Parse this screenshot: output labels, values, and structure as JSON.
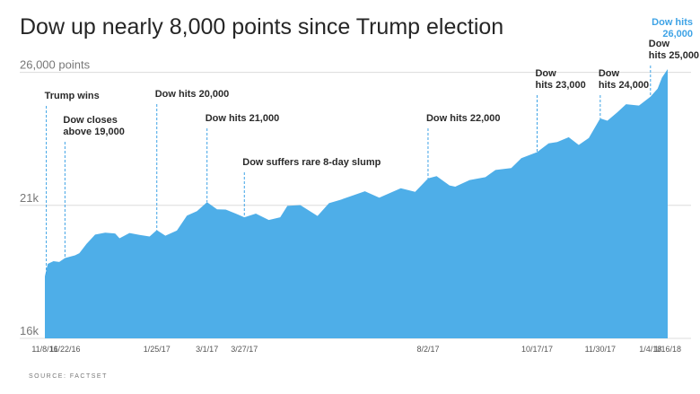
{
  "title": "Dow up nearly 8,000 points since Trump election",
  "source": "SOURCE: FACTSET",
  "colors": {
    "area": "#4eaee8",
    "highlight": "#3ea3e6",
    "grid": "#dcdcdc"
  },
  "chart_data": {
    "type": "area",
    "title": "Dow up nearly 8,000 points since Trump election",
    "ylim": [
      16000,
      27200
    ],
    "y_ticks": [
      {
        "value": 26000,
        "label": "26,000 points"
      },
      {
        "value": 21000,
        "label": "21k"
      },
      {
        "value": 16000,
        "label": "16k"
      }
    ],
    "x_ticks": [
      {
        "date": "2016-11-08",
        "label": "11/8/16"
      },
      {
        "date": "2016-11-22",
        "label": "11/22/16"
      },
      {
        "date": "2017-01-25",
        "label": "1/25/17"
      },
      {
        "date": "2017-03-01",
        "label": "3/1/17"
      },
      {
        "date": "2017-03-27",
        "label": "3/27/17"
      },
      {
        "date": "2017-08-02",
        "label": "8/2/17"
      },
      {
        "date": "2017-10-17",
        "label": "10/17/17"
      },
      {
        "date": "2017-11-30",
        "label": "11/30/17"
      },
      {
        "date": "2018-01-04",
        "label": "1/4/18"
      },
      {
        "date": "2018-01-16",
        "label": "1/16/18"
      }
    ],
    "series": [
      {
        "points": [
          [
            "2016-11-08",
            18330
          ],
          [
            "2016-11-10",
            18800
          ],
          [
            "2016-11-14",
            18900
          ],
          [
            "2016-11-18",
            18870
          ],
          [
            "2016-11-22",
            19020
          ],
          [
            "2016-11-29",
            19120
          ],
          [
            "2016-12-02",
            19200
          ],
          [
            "2016-12-07",
            19550
          ],
          [
            "2016-12-13",
            19900
          ],
          [
            "2016-12-20",
            19970
          ],
          [
            "2016-12-27",
            19940
          ],
          [
            "2016-12-30",
            19760
          ],
          [
            "2017-01-06",
            19960
          ],
          [
            "2017-01-13",
            19890
          ],
          [
            "2017-01-20",
            19830
          ],
          [
            "2017-01-25",
            20070
          ],
          [
            "2017-01-31",
            19860
          ],
          [
            "2017-02-08",
            20050
          ],
          [
            "2017-02-15",
            20610
          ],
          [
            "2017-02-22",
            20780
          ],
          [
            "2017-03-01",
            21120
          ],
          [
            "2017-03-08",
            20850
          ],
          [
            "2017-03-14",
            20840
          ],
          [
            "2017-03-21",
            20690
          ],
          [
            "2017-03-27",
            20550
          ],
          [
            "2017-04-04",
            20690
          ],
          [
            "2017-04-13",
            20450
          ],
          [
            "2017-04-21",
            20550
          ],
          [
            "2017-04-26",
            20980
          ],
          [
            "2017-05-05",
            21010
          ],
          [
            "2017-05-17",
            20600
          ],
          [
            "2017-05-25",
            21080
          ],
          [
            "2017-06-02",
            21210
          ],
          [
            "2017-06-19",
            21530
          ],
          [
            "2017-06-29",
            21290
          ],
          [
            "2017-07-14",
            21640
          ],
          [
            "2017-07-24",
            21510
          ],
          [
            "2017-08-02",
            22010
          ],
          [
            "2017-08-08",
            22100
          ],
          [
            "2017-08-17",
            21750
          ],
          [
            "2017-08-21",
            21700
          ],
          [
            "2017-08-31",
            21950
          ],
          [
            "2017-09-11",
            22060
          ],
          [
            "2017-09-18",
            22330
          ],
          [
            "2017-09-29",
            22400
          ],
          [
            "2017-10-06",
            22770
          ],
          [
            "2017-10-17",
            23000
          ],
          [
            "2017-10-25",
            23330
          ],
          [
            "2017-10-31",
            23380
          ],
          [
            "2017-11-08",
            23560
          ],
          [
            "2017-11-15",
            23270
          ],
          [
            "2017-11-22",
            23530
          ],
          [
            "2017-11-30",
            24270
          ],
          [
            "2017-12-05",
            24180
          ],
          [
            "2017-12-12",
            24500
          ],
          [
            "2017-12-18",
            24800
          ],
          [
            "2017-12-27",
            24750
          ],
          [
            "2018-01-04",
            25080
          ],
          [
            "2018-01-09",
            25390
          ],
          [
            "2018-01-12",
            25800
          ],
          [
            "2018-01-16",
            26120
          ]
        ]
      }
    ],
    "annotations": [
      {
        "date": "2016-11-09",
        "value": 18400,
        "lines": [
          "Trump wins"
        ]
      },
      {
        "date": "2016-11-22",
        "value": 19020,
        "lines": [
          "Dow closes",
          "above 19,000"
        ]
      },
      {
        "date": "2017-01-25",
        "value": 20070,
        "lines": [
          "Dow hits 20,000"
        ]
      },
      {
        "date": "2017-03-01",
        "value": 21120,
        "lines": [
          "Dow hits 21,000"
        ]
      },
      {
        "date": "2017-03-27",
        "value": 20550,
        "lines": [
          "Dow suffers rare 8-day slump"
        ]
      },
      {
        "date": "2017-08-02",
        "value": 22010,
        "lines": [
          "Dow hits 22,000"
        ]
      },
      {
        "date": "2017-10-17",
        "value": 23000,
        "lines": [
          "Dow",
          "hits 23,000"
        ]
      },
      {
        "date": "2017-11-30",
        "value": 24270,
        "lines": [
          "Dow",
          "hits 24,000"
        ]
      },
      {
        "date": "2018-01-04",
        "value": 25080,
        "lines": [
          "Dow",
          "hits 25,000"
        ]
      },
      {
        "date": "2018-01-16",
        "value": 26120,
        "lines": [
          "Dow hits",
          "26,000"
        ],
        "highlight": true
      }
    ]
  }
}
